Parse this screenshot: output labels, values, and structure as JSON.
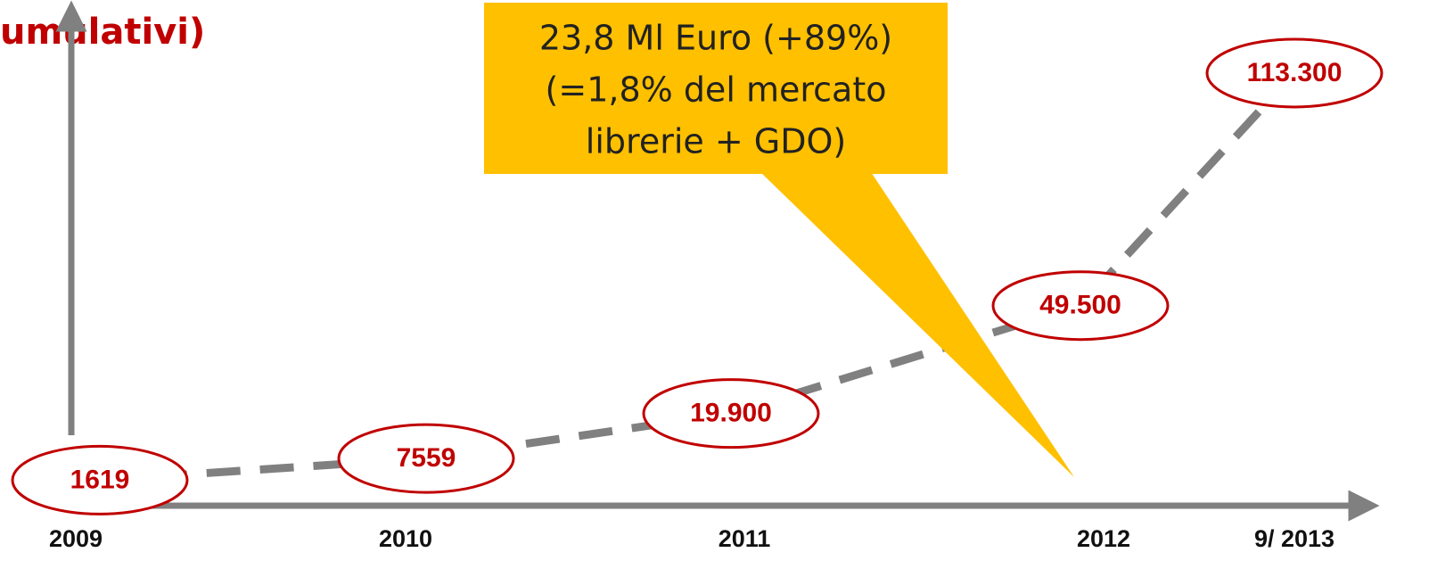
{
  "chart_data": {
    "type": "line",
    "title": "umulativi)",
    "annotation": [
      "23,8 Ml Euro (+89%)",
      "(=1,8% del mercato",
      "librerie + GDO)"
    ],
    "categories": [
      "2009",
      "2010",
      "2011",
      "2012",
      "9/ 2013"
    ],
    "values": [
      1619,
      7559,
      19900,
      49500,
      113300
    ],
    "value_labels": [
      "1619",
      "7559",
      "19.900",
      "49.500",
      "113.300"
    ],
    "color": "#808080",
    "label_color": "#c00000",
    "ylim": [
      0,
      115000
    ]
  }
}
